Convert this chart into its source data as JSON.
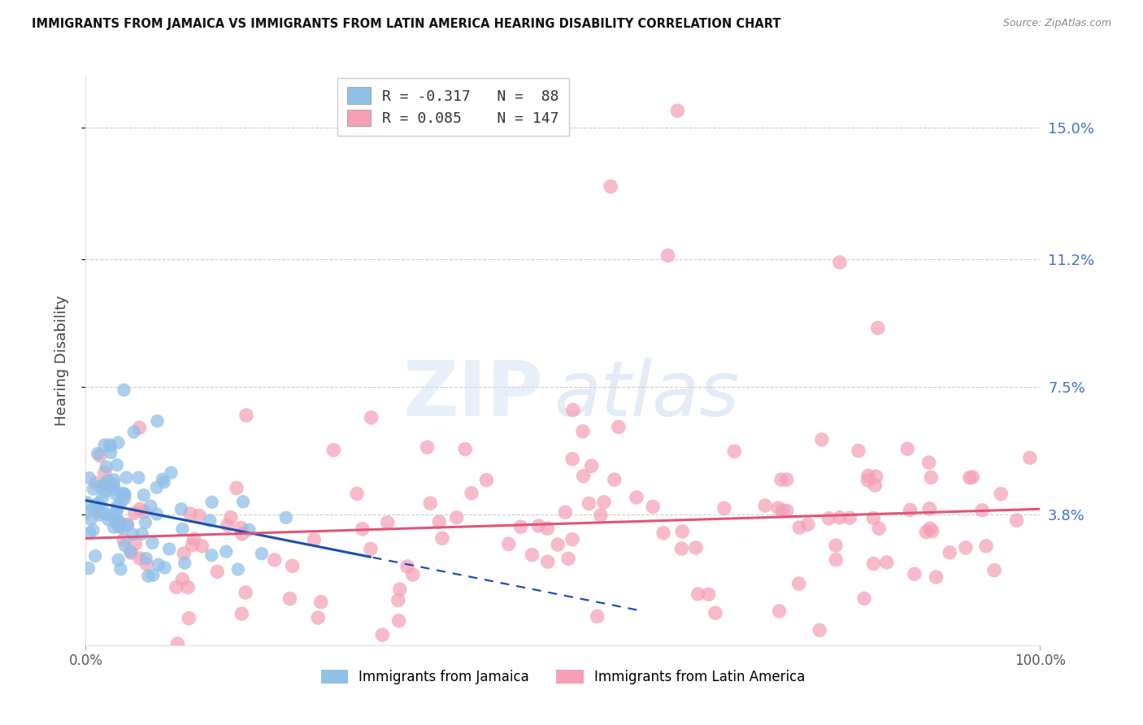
{
  "title": "IMMIGRANTS FROM JAMAICA VS IMMIGRANTS FROM LATIN AMERICA HEARING DISABILITY CORRELATION CHART",
  "source": "Source: ZipAtlas.com",
  "ylabel": "Hearing Disability",
  "xlim": [
    0,
    100
  ],
  "ylim": [
    0.0,
    16.5
  ],
  "yticks": [
    3.8,
    7.5,
    11.2,
    15.0
  ],
  "ytick_labels": [
    "3.8%",
    "7.5%",
    "11.2%",
    "15.0%"
  ],
  "xtick_labels": [
    "0.0%",
    "100.0%"
  ],
  "color_jamaica": "#90bfe8",
  "color_latin": "#f4a0b5",
  "color_jamaica_line": "#1a50b0",
  "color_latin_line": "#e05575",
  "color_tick_right": "#4472c4",
  "R_jamaica": -0.317,
  "N_jamaica": 88,
  "R_latin": 0.085,
  "N_latin": 147,
  "watermark_zip": "ZIP",
  "watermark_atlas": "atlas",
  "legend_label_jamaica": "Immigrants from Jamaica",
  "legend_label_latin": "Immigrants from Latin America",
  "jamaica_intercept": 4.2,
  "jamaica_slope": -0.055,
  "latin_intercept": 3.1,
  "latin_slope": 0.0085,
  "seed": 7
}
